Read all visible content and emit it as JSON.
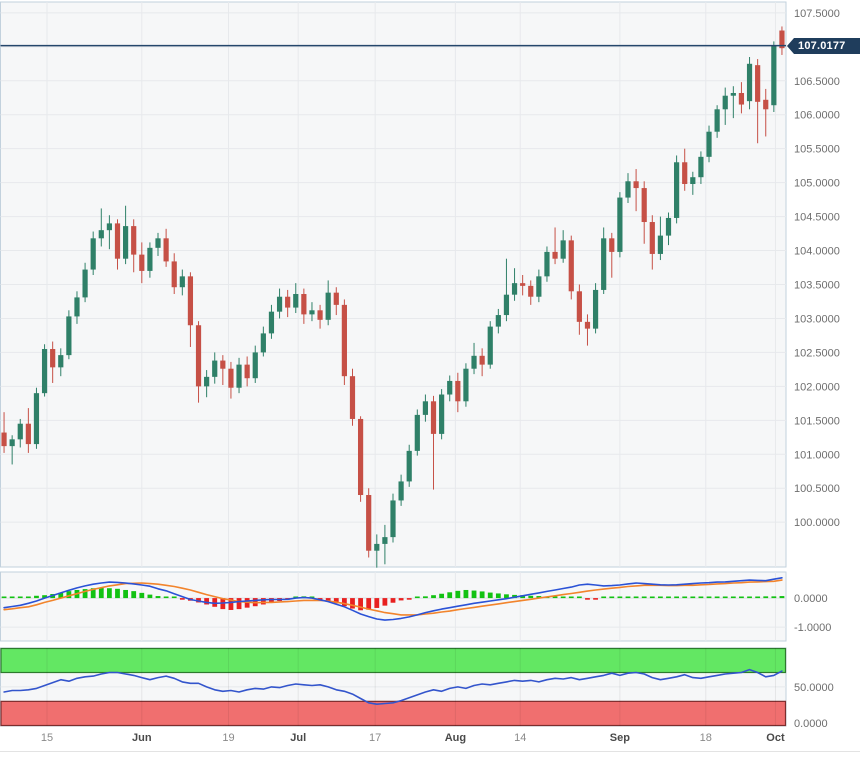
{
  "current_price": {
    "label": "107.0177",
    "value": 107.0177
  },
  "price_axis": {
    "ticks": [
      {
        "value": 107.5,
        "label": "107.5000"
      },
      {
        "value": 106.5,
        "label": "106.5000"
      },
      {
        "value": 106.0,
        "label": "106.0000"
      },
      {
        "value": 105.5,
        "label": "105.5000"
      },
      {
        "value": 105.0,
        "label": "105.0000"
      },
      {
        "value": 104.5,
        "label": "104.5000"
      },
      {
        "value": 104.0,
        "label": "104.0000"
      },
      {
        "value": 103.5,
        "label": "103.5000"
      },
      {
        "value": 103.0,
        "label": "103.0000"
      },
      {
        "value": 102.5,
        "label": "102.5000"
      },
      {
        "value": 102.0,
        "label": "102.0000"
      },
      {
        "value": 101.5,
        "label": "101.5000"
      },
      {
        "value": 101.0,
        "label": "101.0000"
      },
      {
        "value": 100.5,
        "label": "100.5000"
      },
      {
        "value": 100.0,
        "label": "100.0000"
      }
    ],
    "grid_values": [
      100,
      100.5,
      101,
      101.5,
      102,
      102.5,
      103,
      103.5,
      104,
      104.5,
      105,
      105.5,
      106,
      106.5,
      107,
      107.5
    ]
  },
  "macd_axis": {
    "ticks": [
      {
        "value": 0,
        "label": "0.0000"
      },
      {
        "value": -1,
        "label": "-1.0000"
      }
    ]
  },
  "rsi_axis": {
    "ticks": [
      {
        "value": 50,
        "label": "50.0000"
      },
      {
        "value": 0,
        "label": "0.0000"
      }
    ]
  },
  "time_axis": {
    "ticks": [
      {
        "label": "15",
        "index": 5.3,
        "bold": false
      },
      {
        "label": "Jun",
        "index": 17.0,
        "bold": true
      },
      {
        "label": "19",
        "index": 27.7,
        "bold": false
      },
      {
        "label": "Jul",
        "index": 36.3,
        "bold": true
      },
      {
        "label": "17",
        "index": 45.8,
        "bold": false
      },
      {
        "label": "Aug",
        "index": 55.7,
        "bold": true
      },
      {
        "label": "14",
        "index": 63.7,
        "bold": false
      },
      {
        "label": "Sep",
        "index": 76.0,
        "bold": true
      },
      {
        "label": "18",
        "index": 86.6,
        "bold": false
      },
      {
        "label": "Oct",
        "index": 95.2,
        "bold": true
      }
    ]
  },
  "colors": {
    "panel_bg": "#F6F7F8",
    "panel_border": "#C2D1DD",
    "grid": "#E7E9EC",
    "grid_dark": "#DDE0E4",
    "candle_up": "#2F8068",
    "candle_down": "#C65046",
    "price_line": "#24466B",
    "tag_bg": "#1F3D5C",
    "tag_text": "#FFFFFF",
    "macd_line": "#2B52D6",
    "macd_signal": "#F2842C",
    "hist_up": "#12C212",
    "hist_down": "#E82020",
    "rsi_line": "#3355CC",
    "band_high_fill": "#63E763",
    "band_high_edge": "#2D7A2D",
    "band_low_fill": "#F06F6F",
    "band_low_edge": "#7C2D2D",
    "axis_text": "#6E6E6E",
    "month_text": "#4A4A4A",
    "day_text": "#8A8A8A"
  },
  "chart_data": [
    {
      "type": "candlestick",
      "name": "price-panel",
      "ylim": [
        99.34,
        107.66
      ],
      "grid": true,
      "current_price_line": 107.0177,
      "candles": [
        [
          101.32,
          101.62,
          101.02,
          101.12
        ],
        [
          101.12,
          101.28,
          100.85,
          101.22
        ],
        [
          101.22,
          101.52,
          101.1,
          101.45
        ],
        [
          101.45,
          101.68,
          101.02,
          101.15
        ],
        [
          101.15,
          101.98,
          101.08,
          101.9
        ],
        [
          101.9,
          102.62,
          101.85,
          102.55
        ],
        [
          102.55,
          102.66,
          102.05,
          102.28
        ],
        [
          102.28,
          102.56,
          102.15,
          102.46
        ],
        [
          102.46,
          103.12,
          102.4,
          103.03
        ],
        [
          103.03,
          103.4,
          102.92,
          103.31
        ],
        [
          103.31,
          103.82,
          103.24,
          103.72
        ],
        [
          103.72,
          104.28,
          103.64,
          104.18
        ],
        [
          104.18,
          104.62,
          104.06,
          104.3
        ],
        [
          104.3,
          104.52,
          104.02,
          104.4
        ],
        [
          104.4,
          104.46,
          103.72,
          103.88
        ],
        [
          103.88,
          104.66,
          103.8,
          104.36
        ],
        [
          104.36,
          104.46,
          103.68,
          103.94
        ],
        [
          103.94,
          104.12,
          103.52,
          103.7
        ],
        [
          103.7,
          104.12,
          103.6,
          104.04
        ],
        [
          104.04,
          104.26,
          103.92,
          104.18
        ],
        [
          104.18,
          104.32,
          103.76,
          103.84
        ],
        [
          103.84,
          103.96,
          103.36,
          103.46
        ],
        [
          103.46,
          103.72,
          103.34,
          103.62
        ],
        [
          103.62,
          103.68,
          102.58,
          102.9
        ],
        [
          102.9,
          102.96,
          101.76,
          102.0
        ],
        [
          102.0,
          102.24,
          101.84,
          102.14
        ],
        [
          102.14,
          102.5,
          102.04,
          102.38
        ],
        [
          102.38,
          102.46,
          102.02,
          102.26
        ],
        [
          102.26,
          102.36,
          101.82,
          101.98
        ],
        [
          101.98,
          102.42,
          101.9,
          102.32
        ],
        [
          102.32,
          102.44,
          102.0,
          102.12
        ],
        [
          102.12,
          102.6,
          102.05,
          102.5
        ],
        [
          102.5,
          102.88,
          102.44,
          102.78
        ],
        [
          102.78,
          103.2,
          102.7,
          103.1
        ],
        [
          103.1,
          103.44,
          103.0,
          103.32
        ],
        [
          103.32,
          103.42,
          103.02,
          103.16
        ],
        [
          103.16,
          103.52,
          103.08,
          103.36
        ],
        [
          103.36,
          103.44,
          102.92,
          103.06
        ],
        [
          103.06,
          103.24,
          102.96,
          103.12
        ],
        [
          103.12,
          103.2,
          102.85,
          102.98
        ],
        [
          102.98,
          103.56,
          102.9,
          103.38
        ],
        [
          103.38,
          103.46,
          103.05,
          103.2
        ],
        [
          103.2,
          103.28,
          102.02,
          102.15
        ],
        [
          102.15,
          102.26,
          101.42,
          101.52
        ],
        [
          101.52,
          101.56,
          100.3,
          100.4
        ],
        [
          100.4,
          100.5,
          99.48,
          99.58
        ],
        [
          99.58,
          99.82,
          99.33,
          99.68
        ],
        [
          99.68,
          99.96,
          99.38,
          99.78
        ],
        [
          99.78,
          100.42,
          99.7,
          100.32
        ],
        [
          100.32,
          100.7,
          100.24,
          100.6
        ],
        [
          100.6,
          101.14,
          100.52,
          101.05
        ],
        [
          101.05,
          101.66,
          100.98,
          101.58
        ],
        [
          101.58,
          101.88,
          101.48,
          101.78
        ],
        [
          101.78,
          101.86,
          100.48,
          101.3
        ],
        [
          101.3,
          101.96,
          101.22,
          101.88
        ],
        [
          101.88,
          102.16,
          101.78,
          102.08
        ],
        [
          102.08,
          102.2,
          101.62,
          101.78
        ],
        [
          101.78,
          102.34,
          101.7,
          102.26
        ],
        [
          102.26,
          102.64,
          102.18,
          102.45
        ],
        [
          102.45,
          102.56,
          102.15,
          102.32
        ],
        [
          102.32,
          102.96,
          102.26,
          102.88
        ],
        [
          102.88,
          103.14,
          102.78,
          103.05
        ],
        [
          103.05,
          103.88,
          102.96,
          103.35
        ],
        [
          103.35,
          103.74,
          103.26,
          103.52
        ],
        [
          103.52,
          103.64,
          103.34,
          103.48
        ],
        [
          103.48,
          103.56,
          103.2,
          103.32
        ],
        [
          103.32,
          103.72,
          103.24,
          103.62
        ],
        [
          103.62,
          104.06,
          103.54,
          103.98
        ],
        [
          103.98,
          104.34,
          103.8,
          103.88
        ],
        [
          103.88,
          104.3,
          103.82,
          104.15
        ],
        [
          104.15,
          104.22,
          103.28,
          103.4
        ],
        [
          103.4,
          103.5,
          102.76,
          102.95
        ],
        [
          102.95,
          103.06,
          102.6,
          102.85
        ],
        [
          102.85,
          103.52,
          102.78,
          103.42
        ],
        [
          103.42,
          104.34,
          103.36,
          104.18
        ],
        [
          104.18,
          104.26,
          103.6,
          103.98
        ],
        [
          103.98,
          104.86,
          103.9,
          104.78
        ],
        [
          104.78,
          105.14,
          104.7,
          105.02
        ],
        [
          105.02,
          105.2,
          104.58,
          104.92
        ],
        [
          104.92,
          105.02,
          104.1,
          104.42
        ],
        [
          104.42,
          104.52,
          103.72,
          103.95
        ],
        [
          103.95,
          104.5,
          103.86,
          104.22
        ],
        [
          104.22,
          104.56,
          104.08,
          104.48
        ],
        [
          104.48,
          105.4,
          104.4,
          105.3
        ],
        [
          105.3,
          105.5,
          104.88,
          104.98
        ],
        [
          104.98,
          105.16,
          104.82,
          105.08
        ],
        [
          105.08,
          105.46,
          104.98,
          105.38
        ],
        [
          105.38,
          105.84,
          105.3,
          105.75
        ],
        [
          105.75,
          106.14,
          105.66,
          106.08
        ],
        [
          106.08,
          106.4,
          105.85,
          106.28
        ],
        [
          106.28,
          106.42,
          105.95,
          106.32
        ],
        [
          106.32,
          106.48,
          106.02,
          106.15
        ],
        [
          106.2,
          106.85,
          106.08,
          106.75
        ],
        [
          106.73,
          106.82,
          105.58,
          106.19
        ],
        [
          106.22,
          106.38,
          105.68,
          106.08
        ],
        [
          106.14,
          107.08,
          106.04,
          107.02
        ],
        [
          107.24,
          107.3,
          106.88,
          106.98
        ]
      ]
    },
    {
      "type": "bar",
      "name": "macd-panel",
      "ylim": [
        -1.48,
        0.9
      ],
      "zero_line": 0,
      "histogram": [
        0.04,
        0.05,
        0.04,
        0.05,
        0.08,
        0.1,
        0.14,
        0.18,
        0.24,
        0.28,
        0.31,
        0.34,
        0.35,
        0.34,
        0.32,
        0.28,
        0.24,
        0.18,
        0.12,
        0.07,
        0.04,
        0.02,
        -0.04,
        -0.09,
        -0.15,
        -0.22,
        -0.3,
        -0.38,
        -0.41,
        -0.38,
        -0.33,
        -0.28,
        -0.22,
        -0.16,
        -0.1,
        -0.05,
        0.03,
        0.06,
        0.05,
        -0.04,
        -0.1,
        -0.18,
        -0.28,
        -0.36,
        -0.42,
        -0.4,
        -0.34,
        -0.26,
        -0.16,
        -0.08,
        -0.02,
        0.03,
        0.06,
        0.1,
        0.15,
        0.2,
        0.25,
        0.28,
        0.26,
        0.23,
        0.19,
        0.16,
        0.13,
        0.11,
        0.1,
        0.08,
        0.07,
        0.05,
        0.04,
        0.03,
        0.02,
        0.02,
        -0.02,
        -0.03,
        0.02,
        0.04,
        0.05,
        0.05,
        0.04,
        0.03,
        0.02,
        0.02,
        0.03,
        0.02,
        0.02,
        0.03,
        0.03,
        0.04,
        0.04,
        0.05,
        0.05,
        0.04,
        0.05,
        0.05,
        0.06,
        0.06,
        0.07
      ],
      "macd": [
        -0.33,
        -0.29,
        -0.25,
        -0.18,
        -0.1,
        0.0,
        0.09,
        0.18,
        0.27,
        0.35,
        0.42,
        0.48,
        0.52,
        0.55,
        0.54,
        0.52,
        0.49,
        0.45,
        0.41,
        0.32,
        0.25,
        0.15,
        0.05,
        -0.05,
        -0.1,
        -0.15,
        -0.18,
        -0.17,
        -0.15,
        -0.12,
        -0.1,
        -0.08,
        -0.06,
        -0.05,
        -0.05,
        -0.04,
        0.0,
        0.02,
        0.0,
        -0.06,
        -0.12,
        -0.21,
        -0.3,
        -0.42,
        -0.55,
        -0.64,
        -0.72,
        -0.76,
        -0.74,
        -0.7,
        -0.65,
        -0.58,
        -0.5,
        -0.44,
        -0.38,
        -0.33,
        -0.28,
        -0.23,
        -0.18,
        -0.14,
        -0.1,
        -0.06,
        -0.02,
        0.03,
        0.08,
        0.13,
        0.18,
        0.23,
        0.28,
        0.33,
        0.38,
        0.45,
        0.48,
        0.45,
        0.42,
        0.43,
        0.45,
        0.49,
        0.52,
        0.5,
        0.48,
        0.46,
        0.45,
        0.46,
        0.48,
        0.5,
        0.52,
        0.53,
        0.55,
        0.56,
        0.58,
        0.6,
        0.62,
        0.61,
        0.6,
        0.65,
        0.7
      ],
      "signal": [
        -0.4,
        -0.37,
        -0.33,
        -0.3,
        -0.23,
        -0.15,
        -0.08,
        0.0,
        0.08,
        0.15,
        0.23,
        0.3,
        0.36,
        0.42,
        0.46,
        0.5,
        0.51,
        0.52,
        0.5,
        0.48,
        0.44,
        0.4,
        0.34,
        0.28,
        0.2,
        0.12,
        0.05,
        -0.02,
        -0.07,
        -0.12,
        -0.14,
        -0.16,
        -0.15,
        -0.15,
        -0.13,
        -0.12,
        -0.1,
        -0.08,
        -0.08,
        -0.08,
        -0.1,
        -0.14,
        -0.19,
        -0.25,
        -0.31,
        -0.38,
        -0.44,
        -0.5,
        -0.54,
        -0.58,
        -0.58,
        -0.58,
        -0.55,
        -0.52,
        -0.48,
        -0.45,
        -0.4,
        -0.36,
        -0.32,
        -0.28,
        -0.24,
        -0.2,
        -0.16,
        -0.12,
        -0.08,
        -0.04,
        0.0,
        0.04,
        0.08,
        0.12,
        0.16,
        0.2,
        0.24,
        0.28,
        0.31,
        0.34,
        0.37,
        0.4,
        0.42,
        0.44,
        0.44,
        0.44,
        0.43,
        0.43,
        0.44,
        0.44,
        0.46,
        0.47,
        0.49,
        0.5,
        0.52,
        0.53,
        0.55,
        0.56,
        0.57,
        0.58,
        0.62
      ]
    },
    {
      "type": "line",
      "name": "rsi-panel",
      "ylim": [
        -4.2,
        104.0
      ],
      "overbought": 70,
      "oversold": 30,
      "values": [
        43,
        45,
        45,
        46,
        48,
        52,
        56,
        60,
        58,
        62,
        64,
        65,
        68,
        70,
        70,
        68,
        66,
        63,
        60,
        63,
        65,
        62,
        57,
        55,
        55,
        50,
        46,
        44,
        45,
        43,
        46,
        48,
        47,
        50,
        49,
        52,
        54,
        53,
        52,
        53,
        50,
        46,
        44,
        40,
        34,
        28,
        26,
        27,
        28,
        31,
        35,
        39,
        43,
        46,
        44,
        48,
        50,
        48,
        52,
        54,
        53,
        55,
        57,
        59,
        58,
        59,
        57,
        60,
        62,
        61,
        63,
        60,
        62,
        64,
        66,
        69,
        66,
        69,
        70,
        68,
        63,
        60,
        62,
        64,
        67,
        63,
        62,
        64,
        66,
        68,
        69,
        70,
        74,
        70,
        64,
        66,
        72
      ]
    }
  ]
}
